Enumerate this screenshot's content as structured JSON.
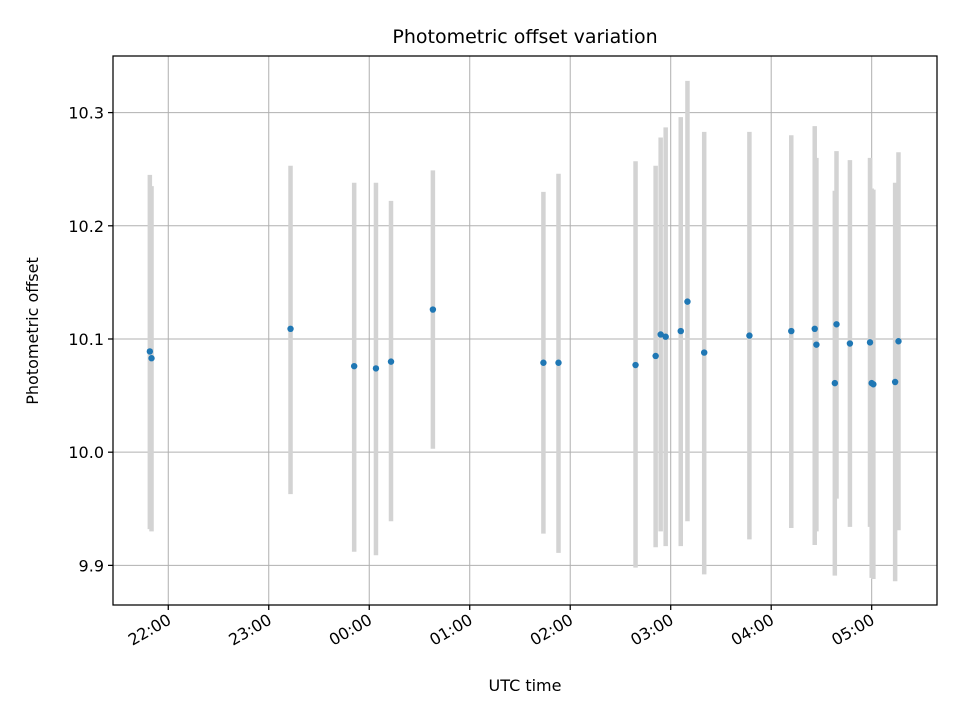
{
  "chart_data": {
    "type": "scatter",
    "title": "Photometric offset variation",
    "xlabel": "UTC time",
    "ylabel": "Photometric offset",
    "x_tick_labels": [
      "22:00",
      "23:00",
      "00:00",
      "01:00",
      "02:00",
      "03:00",
      "04:00",
      "05:00"
    ],
    "y_tick_labels": [
      "9.9",
      "10.0",
      "10.1",
      "10.2",
      "10.3"
    ],
    "x_ticks": [
      "21:59",
      "22:59",
      "23:59",
      "00:59",
      "01:59",
      "02:59",
      "03:59",
      "04:59"
    ],
    "y_ticks": [
      9.9,
      10.0,
      10.1,
      10.2,
      10.3
    ],
    "xlim": [
      "21:26",
      "05:38"
    ],
    "ylim": [
      9.865,
      10.35
    ],
    "grid": true,
    "marker_color": "#1f77b4",
    "errorbar_color": "#d3d3d3",
    "points": [
      {
        "x": "21:48",
        "y": 10.089,
        "ymin": 9.932,
        "ymax": 10.245
      },
      {
        "x": "21:49",
        "y": 10.083,
        "ymin": 9.93,
        "ymax": 10.235
      },
      {
        "x": "23:12",
        "y": 10.109,
        "ymin": 9.963,
        "ymax": 10.253
      },
      {
        "x": "23:50",
        "y": 10.076,
        "ymin": 9.912,
        "ymax": 10.238
      },
      {
        "x": "00:03",
        "y": 10.074,
        "ymin": 9.909,
        "ymax": 10.238
      },
      {
        "x": "00:12",
        "y": 10.08,
        "ymin": 9.939,
        "ymax": 10.222
      },
      {
        "x": "00:37",
        "y": 10.126,
        "ymin": 10.003,
        "ymax": 10.249
      },
      {
        "x": "01:43",
        "y": 10.079,
        "ymin": 9.928,
        "ymax": 10.23
      },
      {
        "x": "01:52",
        "y": 10.079,
        "ymin": 9.911,
        "ymax": 10.246
      },
      {
        "x": "02:38",
        "y": 10.077,
        "ymin": 9.898,
        "ymax": 10.257
      },
      {
        "x": "02:50",
        "y": 10.085,
        "ymin": 9.916,
        "ymax": 10.253
      },
      {
        "x": "02:53",
        "y": 10.104,
        "ymin": 9.93,
        "ymax": 10.278
      },
      {
        "x": "02:56",
        "y": 10.102,
        "ymin": 9.917,
        "ymax": 10.287
      },
      {
        "x": "03:05",
        "y": 10.107,
        "ymin": 9.917,
        "ymax": 10.296
      },
      {
        "x": "03:09",
        "y": 10.133,
        "ymin": 9.939,
        "ymax": 10.328
      },
      {
        "x": "03:19",
        "y": 10.088,
        "ymin": 9.892,
        "ymax": 10.283
      },
      {
        "x": "03:46",
        "y": 10.103,
        "ymin": 9.923,
        "ymax": 10.283
      },
      {
        "x": "04:11",
        "y": 10.107,
        "ymin": 9.933,
        "ymax": 10.28
      },
      {
        "x": "04:25",
        "y": 10.109,
        "ymin": 9.918,
        "ymax": 10.288
      },
      {
        "x": "04:26",
        "y": 10.095,
        "ymin": 9.93,
        "ymax": 10.26
      },
      {
        "x": "04:37",
        "y": 10.061,
        "ymin": 9.891,
        "ymax": 10.231
      },
      {
        "x": "04:38",
        "y": 10.113,
        "ymin": 9.959,
        "ymax": 10.266
      },
      {
        "x": "04:46",
        "y": 10.096,
        "ymin": 9.934,
        "ymax": 10.258
      },
      {
        "x": "04:58",
        "y": 10.097,
        "ymin": 9.934,
        "ymax": 10.26
      },
      {
        "x": "04:59",
        "y": 10.061,
        "ymin": 9.889,
        "ymax": 10.233
      },
      {
        "x": "05:00",
        "y": 10.06,
        "ymin": 9.888,
        "ymax": 10.232
      },
      {
        "x": "05:13",
        "y": 10.062,
        "ymin": 9.886,
        "ymax": 10.238
      },
      {
        "x": "05:15",
        "y": 10.098,
        "ymin": 9.931,
        "ymax": 10.265
      }
    ]
  }
}
